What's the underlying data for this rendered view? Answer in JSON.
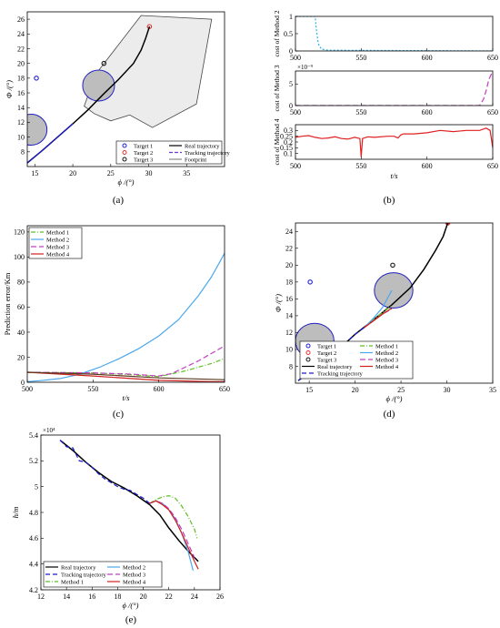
{
  "chart_data": [
    {
      "id": "a",
      "type": "line",
      "caption": "(a)",
      "xlabel": "ϕ /(°)",
      "ylabel": "Φ /(°)",
      "xlim": [
        14,
        40
      ],
      "ylim": [
        6,
        27
      ],
      "xticks": [
        15,
        20,
        25,
        30,
        35
      ],
      "yticks": [
        8,
        10,
        12,
        14,
        16,
        18,
        20,
        22,
        24,
        26
      ],
      "legend": [
        "Target 1",
        "Target 2",
        "Target 3",
        "Real trajectory",
        "Tracking trajectory",
        "Footprint"
      ],
      "legend_position": "bottom-right",
      "targets": [
        {
          "name": "Target 1",
          "x": 15.2,
          "y": 18,
          "color": "#1f1fd0"
        },
        {
          "name": "Target 2",
          "x": 30.1,
          "y": 25,
          "color": "#e03030"
        },
        {
          "name": "Target 3",
          "x": 24.1,
          "y": 20,
          "color": "#111111"
        }
      ],
      "obstacles": [
        {
          "x": 14.5,
          "y": 11,
          "r": 2.1
        },
        {
          "x": 23.4,
          "y": 17,
          "r": 2.1
        }
      ],
      "footprint": [
        [
          21.5,
          14.2
        ],
        [
          23,
          18.5
        ],
        [
          29,
          26.5
        ],
        [
          38.3,
          26
        ],
        [
          36.3,
          14.5
        ],
        [
          30.5,
          11.3
        ],
        [
          27.5,
          13
        ],
        [
          25,
          12.2
        ],
        [
          22.8,
          13.2
        ]
      ],
      "series": [
        {
          "name": "Real trajectory",
          "color": "#000000",
          "x": [
            14,
            16,
            18,
            20,
            22,
            24,
            26,
            28,
            29,
            29.6,
            30.1
          ],
          "y": [
            6.5,
            8.2,
            10,
            11.8,
            13.7,
            15.8,
            17.8,
            20,
            21.8,
            23.4,
            25
          ]
        },
        {
          "name": "Tracking trajectory",
          "color": "#1a1ad0",
          "x": [
            14,
            16,
            18,
            20
          ],
          "y": [
            6.5,
            8.2,
            10,
            11.8
          ]
        }
      ]
    },
    {
      "id": "b",
      "type": "line",
      "caption": "(b)",
      "xlabel": "t/s",
      "panels": [
        {
          "ylabel": "cost of Method 2",
          "ylim": [
            0,
            1
          ],
          "yticks": [
            0,
            0.5,
            1
          ],
          "ytick_labels": [
            "0",
            "0.5",
            "1"
          ],
          "color": "#2ab0e8",
          "dash": "2,2",
          "x": [
            500,
            512,
            515,
            516,
            517,
            518,
            520,
            525,
            650
          ],
          "y": [
            1,
            1,
            1,
            0.6,
            0.3,
            0.15,
            0.05,
            0.02,
            0
          ]
        },
        {
          "ylabel": "cost of Method 3",
          "exponent": "×10⁻⁹",
          "ylim": [
            0,
            8
          ],
          "yticks": [
            0,
            5
          ],
          "ytick_labels": [
            "0",
            "5"
          ],
          "color": "#c03cc0",
          "dash": "6,3",
          "x": [
            500,
            640,
            643,
            645,
            647,
            650
          ],
          "y": [
            0,
            0,
            1.5,
            3.5,
            6,
            8
          ]
        },
        {
          "ylabel": "cost of Method 4",
          "ylim": [
            0.05,
            0.35
          ],
          "yticks": [
            0.1,
            0.15,
            0.2,
            0.25,
            0.3
          ],
          "ytick_labels": [
            "0.1",
            "0.15",
            "0.2",
            "0.25",
            "0.3"
          ],
          "color": "#e02020",
          "dash": "",
          "x": [
            500,
            505,
            510,
            515,
            520,
            525,
            530,
            535,
            540,
            545,
            549,
            550,
            551,
            555,
            560,
            570,
            575,
            578,
            580,
            582,
            590,
            600,
            610,
            620,
            630,
            640,
            645,
            648,
            650
          ],
          "y": [
            0.24,
            0.25,
            0.255,
            0.24,
            0.23,
            0.235,
            0.245,
            0.23,
            0.225,
            0.24,
            0.23,
            0.07,
            0.23,
            0.245,
            0.24,
            0.25,
            0.25,
            0.235,
            0.26,
            0.27,
            0.27,
            0.28,
            0.3,
            0.29,
            0.3,
            0.3,
            0.32,
            0.3,
            0.15
          ]
        }
      ],
      "xlim": [
        500,
        650
      ],
      "xticks": [
        500,
        550,
        600,
        650
      ]
    },
    {
      "id": "c",
      "type": "line",
      "caption": "(c)",
      "xlabel": "t/s",
      "ylabel": "Prediction error/Km",
      "xlim": [
        500,
        650
      ],
      "ylim": [
        0,
        125
      ],
      "xticks": [
        500,
        550,
        600,
        650
      ],
      "yticks": [
        0,
        20,
        40,
        60,
        80,
        100,
        120
      ],
      "legend_position": "top-left",
      "series": [
        {
          "name": "Method 1",
          "color": "#5cc020",
          "dash": "5,2,1,2",
          "x": [
            500,
            550,
            580,
            600,
            620,
            640,
            650
          ],
          "y": [
            8,
            7.5,
            6,
            4.5,
            9,
            15,
            19
          ]
        },
        {
          "name": "Method 2",
          "color": "#4aa8ee",
          "dash": "",
          "x": [
            500,
            510,
            525,
            540,
            555,
            570,
            585,
            600,
            615,
            630,
            640,
            650
          ],
          "y": [
            0.5,
            1.3,
            3,
            6.5,
            12,
            19,
            27,
            37,
            50,
            69,
            84,
            103
          ]
        },
        {
          "name": "Method 3",
          "color": "#c040c0",
          "dash": "6,3",
          "x": [
            500,
            550,
            580,
            600,
            610,
            620,
            630,
            640,
            650
          ],
          "y": [
            8,
            7.5,
            6.5,
            5,
            7,
            12,
            17,
            23,
            29
          ]
        },
        {
          "name": "Method 4",
          "color": "#d02020",
          "dash": "",
          "x": [
            500,
            550,
            600,
            620,
            640,
            650
          ],
          "y": [
            8,
            5,
            1.5,
            1,
            0.5,
            0.5
          ]
        }
      ],
      "extra": {
        "color": "#5a3a20",
        "x": [
          500,
          550,
          600,
          650
        ],
        "y": [
          8,
          6.5,
          3.5,
          2
        ]
      }
    },
    {
      "id": "d",
      "type": "line",
      "caption": "(d)",
      "xlabel": "ϕ /(°)",
      "ylabel": "Φ /(°)",
      "xlim": [
        13.5,
        35
      ],
      "ylim": [
        6,
        25
      ],
      "xticks": [
        15,
        20,
        25,
        30,
        35
      ],
      "yticks": [
        8,
        10,
        12,
        14,
        16,
        18,
        20,
        22,
        24
      ],
      "legend_left": [
        "Target 1",
        "Target 2",
        "Target 3",
        "Real trajectory",
        "Tracking trajectory"
      ],
      "legend_right": [
        "Method 1",
        "Method 2",
        "Method 3",
        "Method 4"
      ],
      "legend_position": "bottom",
      "targets": [
        {
          "name": "Target 1",
          "x": 15.1,
          "y": 18,
          "color": "#1f1fd0"
        },
        {
          "name": "Target 2",
          "x": 30.1,
          "y": 25,
          "color": "#e03030"
        },
        {
          "name": "Target 3",
          "x": 24.1,
          "y": 20,
          "color": "#111111"
        }
      ],
      "obstacles": [
        {
          "x": 15.6,
          "y": 11,
          "r": 2.1
        },
        {
          "x": 24.2,
          "y": 17,
          "r": 2.1
        }
      ],
      "series": [
        {
          "name": "Real trajectory",
          "color": "#000000",
          "dash": "",
          "x": [
            13.8,
            16,
            18,
            20,
            22,
            24,
            26,
            27.5,
            28.8,
            29.6,
            30.1
          ],
          "y": [
            6.3,
            8,
            9.8,
            11.8,
            13.5,
            15.3,
            17.3,
            19.5,
            21.8,
            23.4,
            25
          ]
        },
        {
          "name": "Tracking trajectory",
          "color": "#1a1ad0",
          "dash": "5,3",
          "x": [
            13.8,
            16,
            18,
            20,
            21
          ],
          "y": [
            6.3,
            8,
            9.8,
            11.8,
            12.6
          ]
        },
        {
          "name": "Method 1",
          "color": "#5cc020",
          "dash": "5,2,1,2",
          "x": [
            21,
            22,
            23,
            24
          ],
          "y": [
            12.6,
            13.5,
            14.4,
            15.2
          ]
        },
        {
          "name": "Method 2",
          "color": "#4aa8ee",
          "dash": "",
          "x": [
            21,
            22,
            23,
            23.5,
            24
          ],
          "y": [
            12.6,
            13.7,
            15,
            16,
            17
          ]
        },
        {
          "name": "Method 3",
          "color": "#c040c0",
          "dash": "6,3",
          "x": [
            21,
            22,
            23,
            24
          ],
          "y": [
            12.6,
            13.4,
            14.2,
            14.8
          ]
        },
        {
          "name": "Method 4",
          "color": "#d02020",
          "dash": "",
          "x": [
            21,
            22,
            23,
            24
          ],
          "y": [
            12.6,
            13.4,
            14.2,
            14.9
          ]
        }
      ]
    },
    {
      "id": "e",
      "type": "line",
      "caption": "(e)",
      "xlabel": "ϕ /(°)",
      "ylabel": "h/m",
      "exponent": "×10⁴",
      "xlim": [
        12,
        26
      ],
      "ylim": [
        4.2,
        5.4
      ],
      "xticks": [
        12,
        14,
        16,
        18,
        20,
        22,
        24,
        26
      ],
      "yticks": [
        4.2,
        4.4,
        4.6,
        4.8,
        5,
        5.2,
        5.4
      ],
      "ytick_labels": [
        "4.2",
        "4.4",
        "4.6",
        "4.8",
        "5",
        "5.2",
        "5.4"
      ],
      "legend_left": [
        "Real trajectory",
        "Tracking trajectory",
        "Method 1"
      ],
      "legend_right": [
        "Method 2",
        "Method 3",
        "Method 4"
      ],
      "legend_position": "bottom-left",
      "series": [
        {
          "name": "Real trajectory",
          "color": "#000000",
          "dash": "",
          "x": [
            13.5,
            14.5,
            15.5,
            16.5,
            17.5,
            18.5,
            19.5,
            20.5,
            21.3,
            22,
            22.8,
            23.6,
            24.3
          ],
          "y": [
            5.36,
            5.28,
            5.19,
            5.11,
            5.04,
            4.99,
            4.93,
            4.86,
            4.78,
            4.68,
            4.58,
            4.49,
            4.42
          ]
        },
        {
          "name": "Tracking trajectory",
          "color": "#1a1ad0",
          "dash": "5,3",
          "x": [
            13.5,
            14,
            14.5,
            15,
            15.5,
            16,
            16.5,
            17,
            17.5,
            18,
            18.5,
            19,
            19.5,
            20,
            20.5
          ],
          "y": [
            5.36,
            5.31,
            5.3,
            5.2,
            5.19,
            5.15,
            5.1,
            5.06,
            5.03,
            5,
            4.98,
            4.97,
            4.94,
            4.91,
            4.87
          ]
        },
        {
          "name": "Method 1",
          "color": "#5cc020",
          "dash": "5,2,1,2",
          "x": [
            20.5,
            21,
            21.5,
            22,
            22.5,
            23,
            23.5,
            24,
            24.2
          ],
          "y": [
            4.87,
            4.9,
            4.92,
            4.93,
            4.91,
            4.85,
            4.77,
            4.67,
            4.6
          ]
        },
        {
          "name": "Method 2",
          "color": "#4aa8ee",
          "dash": "",
          "x": [
            20.5,
            21,
            21.5,
            22,
            22.5,
            23,
            23.5,
            23.9
          ],
          "y": [
            4.87,
            4.89,
            4.87,
            4.82,
            4.75,
            4.64,
            4.5,
            4.35
          ]
        },
        {
          "name": "Method 3",
          "color": "#c040c0",
          "dash": "6,3",
          "x": [
            20.5,
            21,
            21.5,
            22,
            22.5,
            23,
            23.5,
            24
          ],
          "y": [
            4.87,
            4.89,
            4.87,
            4.83,
            4.76,
            4.67,
            4.56,
            4.45
          ]
        },
        {
          "name": "Method 4",
          "color": "#d02020",
          "dash": "",
          "x": [
            20.5,
            21,
            21.5,
            22,
            22.5,
            23,
            23.5,
            24,
            24.3
          ],
          "y": [
            4.87,
            4.89,
            4.86,
            4.82,
            4.74,
            4.64,
            4.53,
            4.42,
            4.36
          ]
        }
      ]
    }
  ]
}
